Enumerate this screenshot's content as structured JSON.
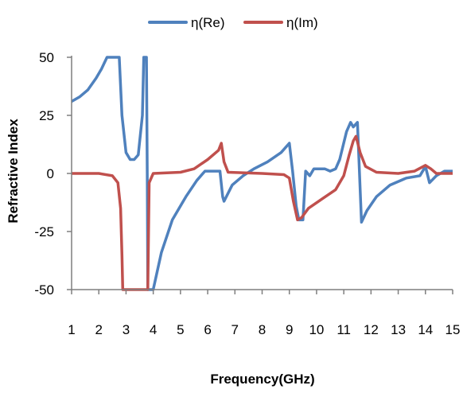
{
  "chart_data": {
    "type": "line",
    "title": "",
    "xlabel": "Frequency(GHz)",
    "ylabel": "Refractive Index",
    "xlim": [
      1,
      15
    ],
    "ylim": [
      -50,
      50
    ],
    "x_ticks": [
      "1",
      "2",
      "3",
      "4",
      "5",
      "6",
      "7",
      "8",
      "9",
      "10",
      "11",
      "12",
      "13",
      "14",
      "15"
    ],
    "y_ticks": [
      "50",
      "25",
      "0",
      "-25",
      "-50"
    ],
    "grid": false,
    "legend_position": "top-center",
    "series": [
      {
        "name": "η(Re)",
        "color": "#4f81bd",
        "points": [
          [
            1.0,
            31
          ],
          [
            1.3,
            33
          ],
          [
            1.6,
            36
          ],
          [
            1.9,
            41
          ],
          [
            2.1,
            45
          ],
          [
            2.3,
            50
          ],
          [
            2.75,
            50
          ],
          [
            2.85,
            25
          ],
          [
            3.0,
            9
          ],
          [
            3.15,
            6
          ],
          [
            3.3,
            6
          ],
          [
            3.45,
            8
          ],
          [
            3.6,
            25
          ],
          [
            3.65,
            50
          ],
          [
            3.75,
            50
          ],
          [
            3.78,
            0
          ],
          [
            3.8,
            -50
          ],
          [
            4.0,
            -50
          ],
          [
            4.3,
            -34
          ],
          [
            4.7,
            -20
          ],
          [
            5.2,
            -10
          ],
          [
            5.6,
            -3
          ],
          [
            5.9,
            1
          ],
          [
            6.2,
            1
          ],
          [
            6.45,
            1
          ],
          [
            6.55,
            -10
          ],
          [
            6.6,
            -12
          ],
          [
            6.9,
            -5
          ],
          [
            7.3,
            -1
          ],
          [
            7.7,
            2
          ],
          [
            8.2,
            5
          ],
          [
            8.7,
            9
          ],
          [
            9.0,
            13
          ],
          [
            9.12,
            1
          ],
          [
            9.25,
            -14
          ],
          [
            9.35,
            -20
          ],
          [
            9.5,
            -20
          ],
          [
            9.6,
            1
          ],
          [
            9.75,
            -1
          ],
          [
            9.9,
            2
          ],
          [
            10.3,
            2
          ],
          [
            10.5,
            1
          ],
          [
            10.7,
            2
          ],
          [
            10.85,
            6
          ],
          [
            11.1,
            18
          ],
          [
            11.25,
            22
          ],
          [
            11.35,
            20
          ],
          [
            11.5,
            22
          ],
          [
            11.65,
            -21
          ],
          [
            11.85,
            -16
          ],
          [
            12.2,
            -10
          ],
          [
            12.7,
            -5
          ],
          [
            13.3,
            -2
          ],
          [
            13.8,
            -1
          ],
          [
            14.0,
            3
          ],
          [
            14.15,
            -4
          ],
          [
            14.4,
            -1
          ],
          [
            14.7,
            1
          ],
          [
            15.0,
            1
          ]
        ]
      },
      {
        "name": "η(Im)",
        "color": "#c0504d",
        "points": [
          [
            1.0,
            0
          ],
          [
            2.0,
            0
          ],
          [
            2.5,
            -1
          ],
          [
            2.7,
            -4
          ],
          [
            2.8,
            -15
          ],
          [
            2.85,
            -35
          ],
          [
            2.88,
            -50
          ],
          [
            3.8,
            -50
          ],
          [
            3.85,
            -4
          ],
          [
            4.0,
            0
          ],
          [
            5.0,
            0.5
          ],
          [
            5.5,
            2
          ],
          [
            6.0,
            6
          ],
          [
            6.4,
            10
          ],
          [
            6.5,
            13
          ],
          [
            6.6,
            5
          ],
          [
            6.75,
            0.5
          ],
          [
            8.0,
            0
          ],
          [
            8.8,
            -0.5
          ],
          [
            9.0,
            -2
          ],
          [
            9.15,
            -12
          ],
          [
            9.3,
            -20
          ],
          [
            9.45,
            -19
          ],
          [
            9.7,
            -15
          ],
          [
            10.2,
            -11
          ],
          [
            10.7,
            -7
          ],
          [
            11.0,
            -1
          ],
          [
            11.2,
            8
          ],
          [
            11.35,
            14
          ],
          [
            11.45,
            16
          ],
          [
            11.6,
            9
          ],
          [
            11.8,
            3
          ],
          [
            12.2,
            0.5
          ],
          [
            13.0,
            0
          ],
          [
            13.6,
            1
          ],
          [
            14.0,
            3.5
          ],
          [
            14.2,
            2
          ],
          [
            14.4,
            0
          ],
          [
            15.0,
            0
          ]
        ]
      }
    ]
  }
}
